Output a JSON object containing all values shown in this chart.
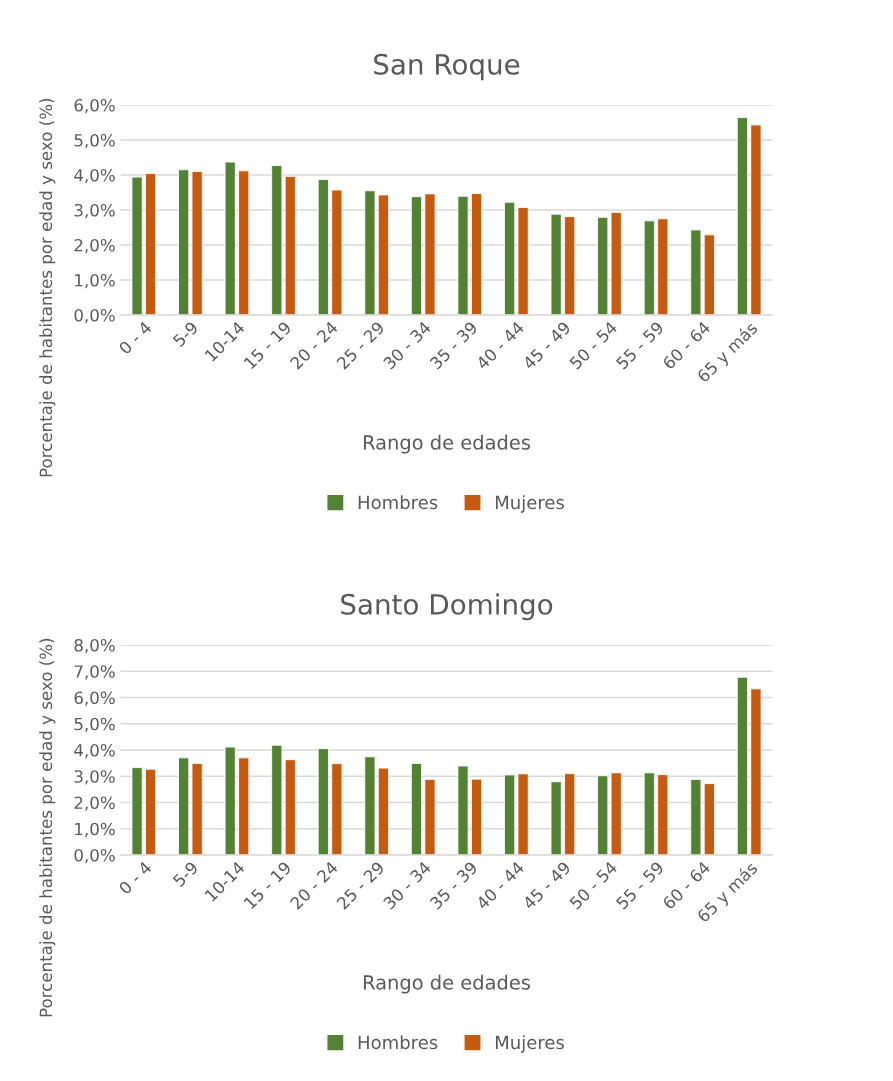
{
  "chart_data": [
    {
      "type": "bar",
      "title": "San Roque",
      "xlabel": "Rango de edades",
      "ylabel": "Porcentaje de habitantes por edad y sexo (%)",
      "categories": [
        "0 - 4",
        "5-9",
        "10-14",
        "15 - 19",
        "20 - 24",
        "25 - 29",
        "30 - 34",
        "35 - 39",
        "40 - 44",
        "45 - 49",
        "50 - 54",
        "55 - 59",
        "60 - 64",
        "65 y más"
      ],
      "series": [
        {
          "name": "Hombres",
          "color": "#548235",
          "values": [
            3.94,
            4.15,
            4.37,
            4.27,
            3.87,
            3.55,
            3.38,
            3.39,
            3.22,
            2.88,
            2.79,
            2.69,
            2.43,
            5.64
          ]
        },
        {
          "name": "Mujeres",
          "color": "#c55a11",
          "values": [
            4.04,
            4.1,
            4.12,
            3.96,
            3.57,
            3.43,
            3.46,
            3.47,
            3.07,
            2.81,
            2.93,
            2.75,
            2.29,
            5.43
          ]
        }
      ],
      "ylim": [
        0,
        6
      ],
      "yticks": [
        {
          "value": 0,
          "label": "0,0%"
        },
        {
          "value": 1,
          "label": "1,0%"
        },
        {
          "value": 2,
          "label": "2,0%"
        },
        {
          "value": 3,
          "label": "3,0%"
        },
        {
          "value": 4,
          "label": "4,0%"
        },
        {
          "value": 5,
          "label": "5,0%"
        },
        {
          "value": 6,
          "label": "6,0%"
        }
      ],
      "grid": "y",
      "legend": "bottom"
    },
    {
      "type": "bar",
      "title": "Santo Domingo",
      "xlabel": "Rango de edades",
      "ylabel": "Porcentaje de habitantes por edad y sexo (%)",
      "categories": [
        "0 - 4",
        "5-9",
        "10-14",
        "15 - 19",
        "20 - 24",
        "25 - 29",
        "30 - 34",
        "35 - 39",
        "40 - 44",
        "45 - 49",
        "50 - 54",
        "55 - 59",
        "60 - 64",
        "65 y más"
      ],
      "series": [
        {
          "name": "Hombres",
          "color": "#548235",
          "values": [
            3.33,
            3.7,
            4.11,
            4.18,
            4.05,
            3.74,
            3.49,
            3.39,
            3.05,
            2.79,
            3.02,
            3.13,
            2.88,
            6.77
          ]
        },
        {
          "name": "Mujeres",
          "color": "#c55a11",
          "values": [
            3.27,
            3.49,
            3.7,
            3.63,
            3.48,
            3.31,
            2.88,
            2.89,
            3.09,
            3.1,
            3.13,
            3.06,
            2.72,
            6.33
          ]
        }
      ],
      "ylim": [
        0,
        8
      ],
      "yticks": [
        {
          "value": 0,
          "label": "0,0%"
        },
        {
          "value": 1,
          "label": "1,0%"
        },
        {
          "value": 2,
          "label": "2,0%"
        },
        {
          "value": 3,
          "label": "3,0%"
        },
        {
          "value": 4,
          "label": "4,0%"
        },
        {
          "value": 5,
          "label": "5,0%"
        },
        {
          "value": 6,
          "label": "6,0%"
        },
        {
          "value": 7,
          "label": "7,0%"
        },
        {
          "value": 8,
          "label": "8,0%"
        }
      ],
      "grid": "y",
      "legend": "bottom"
    }
  ]
}
